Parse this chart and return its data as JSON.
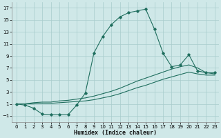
{
  "xlabel": "Humidex (Indice chaleur)",
  "bg_color": "#cfe8e8",
  "grid_color": "#a8cccc",
  "line_color": "#1f6e5e",
  "xlim": [
    -0.5,
    23.5
  ],
  "ylim": [
    -2.0,
    18.0
  ],
  "xticks": [
    0,
    1,
    2,
    3,
    4,
    5,
    6,
    7,
    8,
    9,
    10,
    11,
    12,
    13,
    14,
    15,
    16,
    17,
    18,
    19,
    20,
    21,
    22,
    23
  ],
  "yticks": [
    -1,
    1,
    3,
    5,
    7,
    9,
    11,
    13,
    15,
    17
  ],
  "line1_x": [
    0,
    1,
    2,
    3,
    4,
    5,
    6,
    7,
    8,
    9,
    10,
    11,
    12,
    13,
    14,
    15,
    16,
    17,
    18,
    19,
    20,
    21,
    22,
    23
  ],
  "line1_y": [
    1.0,
    0.8,
    0.3,
    -0.7,
    -0.8,
    -0.8,
    -0.8,
    0.8,
    2.8,
    9.5,
    12.2,
    14.2,
    15.5,
    16.2,
    16.5,
    16.8,
    13.5,
    9.5,
    7.2,
    7.5,
    9.2,
    6.5,
    6.2,
    6.2
  ],
  "line2_x": [
    0,
    1,
    2,
    3,
    4,
    5,
    6,
    7,
    8,
    9,
    10,
    11,
    12,
    13,
    14,
    15,
    16,
    17,
    18,
    19,
    20,
    21,
    22,
    23
  ],
  "line2_y": [
    1.0,
    1.0,
    1.2,
    1.3,
    1.3,
    1.5,
    1.6,
    1.8,
    2.0,
    2.3,
    2.7,
    3.1,
    3.6,
    4.2,
    4.8,
    5.3,
    5.8,
    6.3,
    6.8,
    7.2,
    7.5,
    7.0,
    6.2,
    6.0
  ],
  "line3_x": [
    0,
    1,
    2,
    3,
    4,
    5,
    6,
    7,
    8,
    9,
    10,
    11,
    12,
    13,
    14,
    15,
    16,
    17,
    18,
    19,
    20,
    21,
    22,
    23
  ],
  "line3_y": [
    1.0,
    1.0,
    1.0,
    1.1,
    1.1,
    1.2,
    1.3,
    1.4,
    1.5,
    1.7,
    2.0,
    2.3,
    2.7,
    3.2,
    3.7,
    4.1,
    4.6,
    5.1,
    5.5,
    5.9,
    6.3,
    6.0,
    5.8,
    5.8
  ]
}
